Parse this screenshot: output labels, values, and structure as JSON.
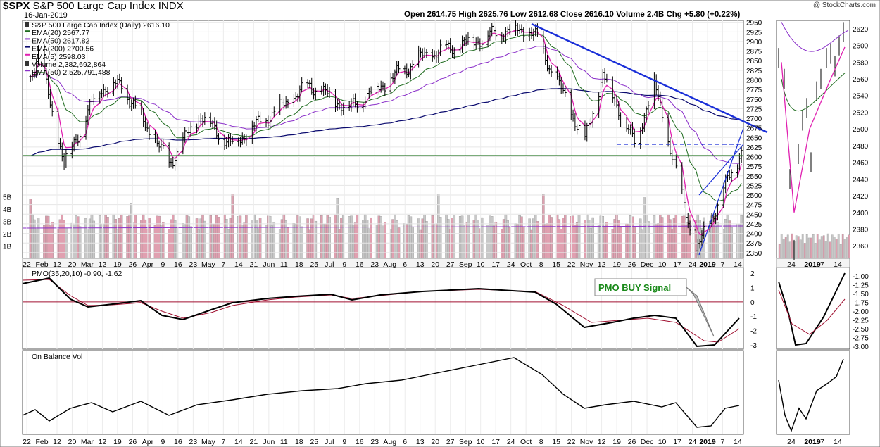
{
  "header": {
    "symbol": "$SPX",
    "name": "S&P 500 Large Cap Index",
    "exchange": "INDX",
    "date": "16-Jan-2019",
    "watermark": "@ StockCharts.com",
    "ohlc_text": "Open 2614.75  High 2625.76  Low 2612.68  Close 2616.10  Volume 2.4B  Chg +5.80 (+0.22%)"
  },
  "colors": {
    "ema20": "#1e6b1e",
    "ema50": "#8a2fc9",
    "ema200": "#0a0a6e",
    "ema5": "#e020b0",
    "volume_up": "#c8c8c8",
    "volume_down": "#e0a0b0",
    "trendline": "#1a2fd8",
    "pmo": "#000000",
    "pmo_signal": "#a01030",
    "signal_text": "#1a8a1a"
  },
  "chart_data": [
    {
      "type": "line",
      "panel": "price",
      "legend": [
        {
          "label": "S&P 500 Large Cap Index (Daily) 2616.10",
          "marker": "price"
        },
        {
          "label": "EMA(20) 2567.77",
          "color": "#1e6b1e"
        },
        {
          "label": "EMA(50) 2617.82",
          "color": "#8a2fc9"
        },
        {
          "label": "EMA(200) 2700.56",
          "color": "#0a0a6e"
        },
        {
          "label": "EMA(5) 2598.03",
          "color": "#e020b0"
        },
        {
          "label": "Volume 2,382,692,864",
          "marker": "volume"
        },
        {
          "label": "EMA(50) 2,525,791,488",
          "color": "#8a2fc9"
        }
      ],
      "ylim": [
        2335,
        2955
      ],
      "y_ticks": [
        2350,
        2375,
        2400,
        2425,
        2450,
        2475,
        2500,
        2525,
        2550,
        2575,
        2600,
        2625,
        2650,
        2675,
        2700,
        2725,
        2750,
        2775,
        2800,
        2825,
        2850,
        2875,
        2900,
        2925,
        2950
      ],
      "volume_ticks": [
        "1B",
        "2B",
        "3B",
        "4B",
        "5B"
      ],
      "x_tick_labels": [
        "22",
        "Feb",
        "12",
        "20",
        "Mar",
        "12",
        "19",
        "26",
        "Apr",
        "9",
        "16",
        "23",
        "May",
        "7",
        "14",
        "21",
        "Jun",
        "11",
        "18",
        "25",
        "Jul",
        "9",
        "16",
        "23",
        "Aug",
        "6",
        "13",
        "20",
        "27",
        "Sep",
        "10",
        "17",
        "24",
        "Oct",
        "8",
        "15",
        "22",
        "Nov",
        "12",
        "19",
        "26",
        "Dec",
        "10",
        "17",
        "24",
        "2019",
        "7",
        "14"
      ],
      "series": [
        {
          "name": "S&P 500 Large Cap Index",
          "x": [
            "2018-01-22",
            "2018-01-26",
            "2018-02-08",
            "2018-02-26",
            "2018-03-09",
            "2018-04-02",
            "2018-04-18",
            "2018-05-03",
            "2018-06-12",
            "2018-07-02",
            "2018-08-07",
            "2018-09-20",
            "2018-10-03",
            "2018-10-29",
            "2018-11-07",
            "2018-11-23",
            "2018-12-03",
            "2018-12-24",
            "2019-01-16"
          ],
          "values": [
            2810,
            2872,
            2581,
            2779,
            2786,
            2582,
            2708,
            2630,
            2786,
            2726,
            2858,
            2930,
            2925,
            2641,
            2813,
            2633,
            2790,
            2351,
            2616
          ]
        },
        {
          "name": "EMA(20)",
          "values_last": 2567.77
        },
        {
          "name": "EMA(50)",
          "values_last": 2617.82
        },
        {
          "name": "EMA(200)",
          "values_last": 2700.56
        },
        {
          "name": "EMA(5)",
          "values_last": 2598.03
        }
      ],
      "annotations": {
        "horizontal_support": 2603,
        "dashed_level": 2632
      }
    },
    {
      "type": "line",
      "panel": "indicator",
      "legend_label": "PMO(35,20,10) -0.90, -1.62",
      "ylim": [
        -3.3,
        2.4
      ],
      "y_ticks": [
        -3,
        -2,
        -1,
        0,
        1,
        2
      ],
      "callout": "PMO BUY Signal",
      "series": [
        {
          "name": "PMO",
          "last": -0.9
        },
        {
          "name": "Signal",
          "last": -1.62
        }
      ]
    },
    {
      "type": "line",
      "panel": "obv",
      "legend_label": "On Balance Vol"
    },
    {
      "type": "line",
      "panel": "zoom",
      "ylim": [
        2345,
        2630
      ],
      "y_ticks": [
        2360,
        2380,
        2400,
        2420,
        2440,
        2460,
        2480,
        2500,
        2520,
        2540,
        2560,
        2580,
        2600,
        2620
      ],
      "pmo_ticks": [
        "-1.00",
        "-1.25",
        "-1.50",
        "-1.75",
        "-2.00",
        "-2.25",
        "-2.50",
        "-2.75",
        "-3.00"
      ],
      "x_tick_labels": [
        "24",
        "2019",
        "7",
        "14"
      ]
    }
  ]
}
